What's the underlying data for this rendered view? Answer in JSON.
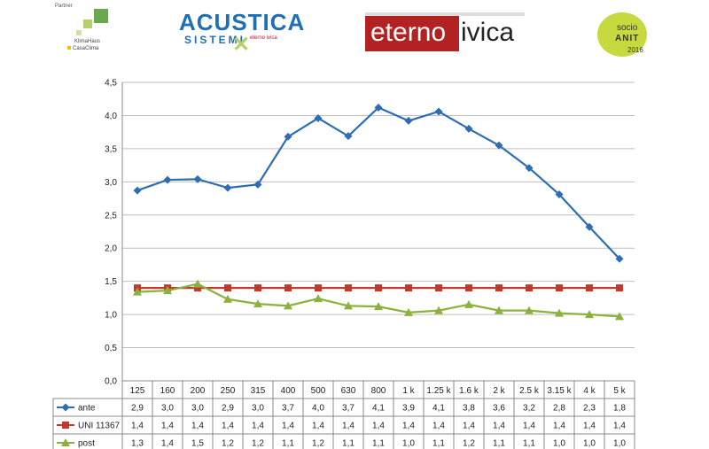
{
  "logos": {
    "partner": {
      "caption": "Partner",
      "line1": "KlimaHaus",
      "line2": "CasaClima",
      "icon": "partner-squares-icon"
    },
    "acustica": {
      "main": "ACUSTICA",
      "sub": "SISTEMI",
      "small": "eterno ivica",
      "icon": "acustica-x-icon"
    },
    "eterno": {
      "part1": "eterno",
      "part2": "ivica",
      "accent": "#b22222"
    },
    "anit": {
      "line1": "socio",
      "line2": "ANIT",
      "year": "2016",
      "accent": "#c6d93e"
    }
  },
  "chart_data": {
    "type": "line",
    "categories": [
      "125",
      "160",
      "200",
      "250",
      "315",
      "400",
      "500",
      "630",
      "800",
      "1 k",
      "1.25 k",
      "1.6 k",
      "2 k",
      "2.5 k",
      "3.15 k",
      "4 k",
      "5 k"
    ],
    "ylim": [
      0,
      4.5
    ],
    "yticks": [
      "0,0",
      "0,5",
      "1,0",
      "1,5",
      "2,0",
      "2,5",
      "3,0",
      "3,5",
      "4,0",
      "4,5"
    ],
    "grid": true,
    "series": [
      {
        "name": "ante",
        "color": "#2e6db4",
        "marker": "diamond",
        "values": [
          2.87,
          3.03,
          3.04,
          2.91,
          2.96,
          3.68,
          3.96,
          3.69,
          4.12,
          3.92,
          4.06,
          3.8,
          3.55,
          3.21,
          2.81,
          2.32,
          1.84
        ],
        "labels": [
          "2,9",
          "3,0",
          "3,0",
          "2,9",
          "3,0",
          "3,7",
          "4,0",
          "3,7",
          "4,1",
          "3,9",
          "4,1",
          "3,8",
          "3,6",
          "3,2",
          "2,8",
          "2,3",
          "1,8"
        ]
      },
      {
        "name": "UNI 11367",
        "color": "#c0392b",
        "marker": "square",
        "values": [
          1.4,
          1.4,
          1.4,
          1.4,
          1.4,
          1.4,
          1.4,
          1.4,
          1.4,
          1.4,
          1.4,
          1.4,
          1.4,
          1.4,
          1.4,
          1.4,
          1.4
        ],
        "labels": [
          "1,4",
          "1,4",
          "1,4",
          "1,4",
          "1,4",
          "1,4",
          "1,4",
          "1,4",
          "1,4",
          "1,4",
          "1,4",
          "1,4",
          "1,4",
          "1,4",
          "1,4",
          "1,4",
          "1,4"
        ]
      },
      {
        "name": "post",
        "color": "#8ab23c",
        "marker": "triangle",
        "values": [
          1.34,
          1.36,
          1.46,
          1.23,
          1.16,
          1.13,
          1.24,
          1.13,
          1.12,
          1.03,
          1.06,
          1.15,
          1.06,
          1.06,
          1.02,
          1.0,
          0.97
        ],
        "labels": [
          "1,3",
          "1,4",
          "1,5",
          "1,2",
          "1,2",
          "1,1",
          "1,2",
          "1,1",
          "1,1",
          "1,0",
          "1,1",
          "1,2",
          "1,1",
          "1,1",
          "1,0",
          "1,0",
          "1,0"
        ]
      }
    ]
  }
}
